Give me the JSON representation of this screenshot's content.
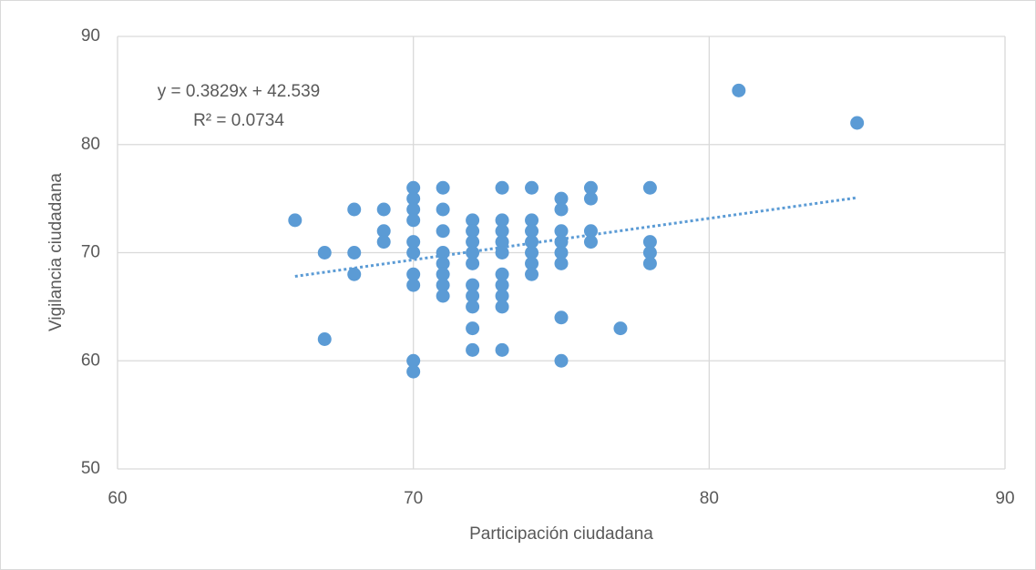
{
  "chart_data": {
    "type": "scatter",
    "x_label": "Participación ciudadana",
    "y_label": "Vigilancia ciudadana",
    "x": [
      66,
      67,
      67,
      68,
      68,
      68,
      69,
      69,
      69,
      70,
      70,
      70,
      70,
      70,
      70,
      70,
      70,
      70,
      70,
      71,
      71,
      71,
      71,
      71,
      71,
      71,
      71,
      72,
      72,
      72,
      72,
      72,
      72,
      72,
      72,
      72,
      72,
      73,
      73,
      73,
      73,
      73,
      73,
      73,
      73,
      73,
      73,
      74,
      74,
      74,
      74,
      74,
      74,
      74,
      75,
      75,
      75,
      75,
      75,
      75,
      75,
      75,
      76,
      76,
      76,
      76,
      77,
      78,
      78,
      78,
      78,
      81,
      85
    ],
    "values": [
      73,
      70,
      62,
      74,
      70,
      68,
      74,
      72,
      71,
      76,
      75,
      74,
      73,
      71,
      70,
      68,
      67,
      60,
      59,
      76,
      74,
      72,
      70,
      69,
      68,
      67,
      66,
      73,
      72,
      71,
      70,
      69,
      67,
      66,
      65,
      63,
      61,
      76,
      73,
      72,
      71,
      70,
      68,
      67,
      66,
      65,
      61,
      76,
      73,
      72,
      71,
      70,
      69,
      68,
      75,
      74,
      72,
      71,
      70,
      69,
      64,
      60,
      76,
      75,
      72,
      71,
      63,
      76,
      71,
      70,
      69,
      85,
      82
    ],
    "color": "#5b9bd5",
    "xlim": [
      60,
      90
    ],
    "xticks": [
      60,
      70,
      80,
      90
    ],
    "ylim": [
      50,
      90
    ],
    "yticks": [
      50,
      60,
      70,
      80,
      90
    ],
    "grid": true,
    "trendline": {
      "equation": "y = 0.3829x + 42.539",
      "r2": "R² = 0.0734",
      "slope": 0.3829,
      "intercept": 42.539
    }
  }
}
